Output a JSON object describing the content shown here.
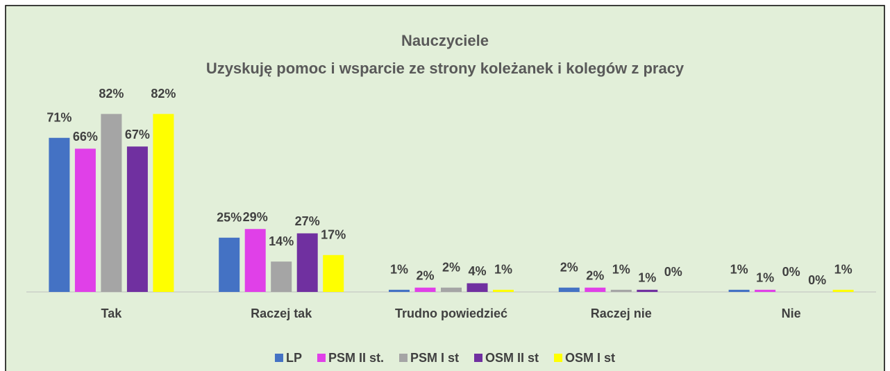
{
  "chart_data": {
    "type": "bar",
    "title": "Nauczyciele",
    "subtitle": "Uzyskuję pomoc i wsparcie ze strony koleżanek i kolegów z pracy",
    "categories": [
      "Tak",
      "Raczej tak",
      "Trudno powiedzieć",
      "Raczej nie",
      "Nie"
    ],
    "series": [
      {
        "name": "LP",
        "color": "#4472c4",
        "values": [
          71,
          25,
          1,
          2,
          1
        ],
        "value_labels": [
          "71%",
          "25%",
          "1%",
          "2%",
          "1%"
        ]
      },
      {
        "name": "PSM II st.",
        "color": "#e040e8",
        "values": [
          66,
          29,
          2,
          2,
          1
        ],
        "value_labels": [
          "66%",
          "29%",
          "2%",
          "2%",
          "1%"
        ]
      },
      {
        "name": "PSM I st",
        "color": "#a5a5a5",
        "values": [
          82,
          14,
          2,
          1,
          0
        ],
        "value_labels": [
          "82%",
          "14%",
          "2%",
          "1%",
          "0%"
        ]
      },
      {
        "name": "OSM II st",
        "color": "#7030a0",
        "values": [
          67,
          27,
          4,
          1,
          0
        ],
        "value_labels": [
          "67%",
          "27%",
          "4%",
          "1%",
          "0%"
        ]
      },
      {
        "name": "OSM I st",
        "color": "#ffff00",
        "values": [
          82,
          17,
          1,
          0,
          1
        ],
        "value_labels": [
          "82%",
          "17%",
          "1%",
          "0%",
          "1%"
        ]
      }
    ],
    "ylim": [
      0,
      100
    ],
    "legend": "bottom"
  }
}
